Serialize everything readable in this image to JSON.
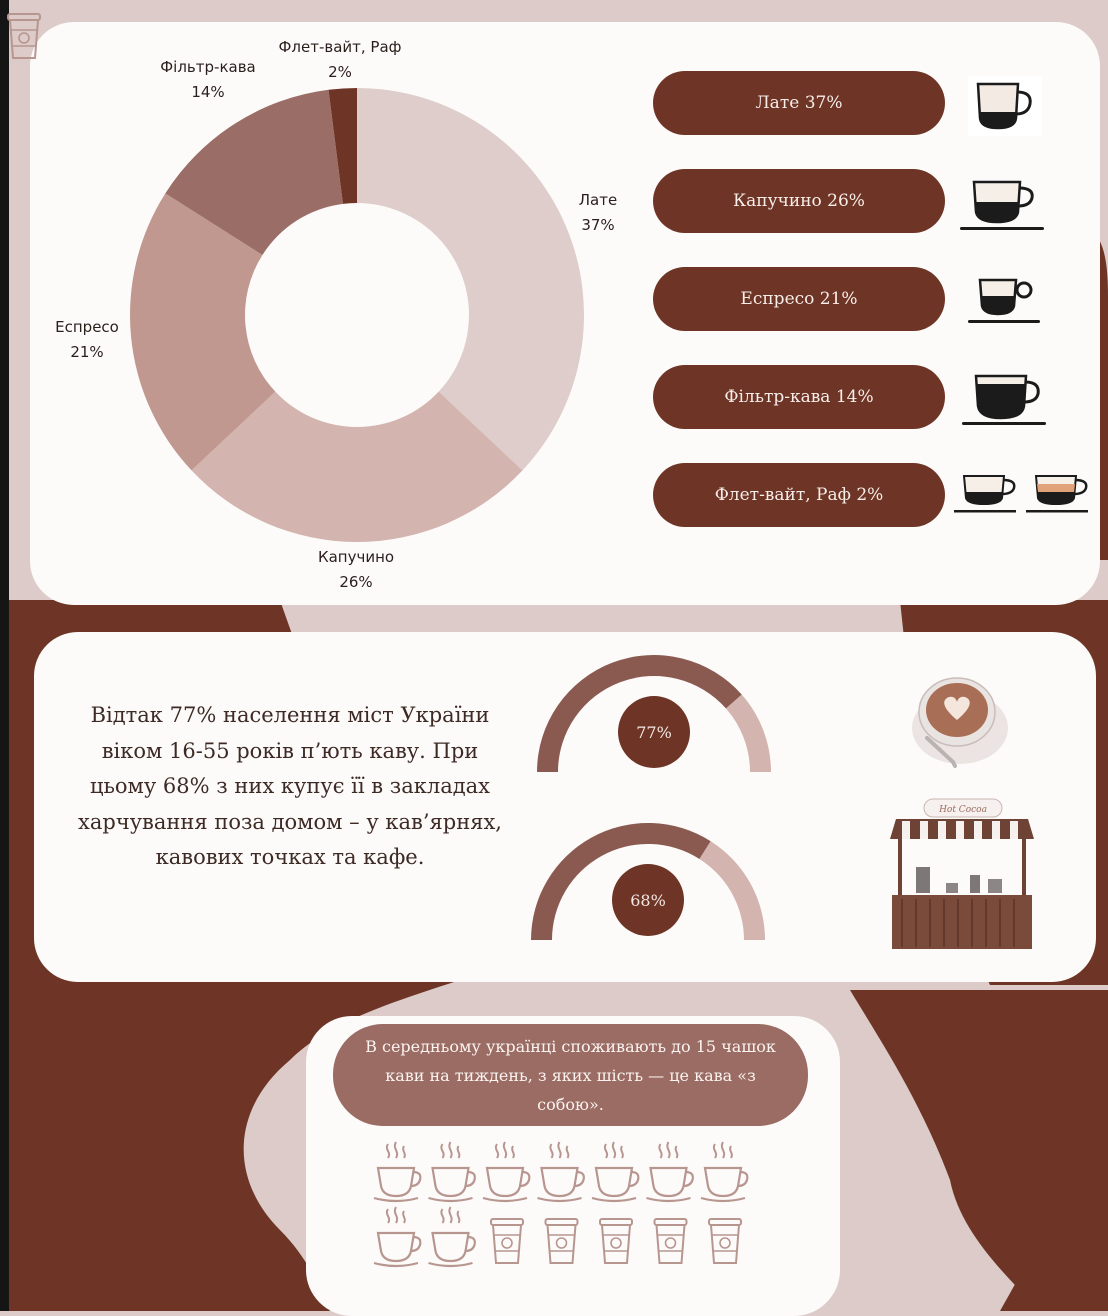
{
  "chart_data": [
    {
      "type": "pie",
      "title": "",
      "categories": [
        "Лате",
        "Капучино",
        "Еспресо",
        "Фільтр-кава",
        "Флет-вайт, Раф"
      ],
      "values": [
        37,
        26,
        21,
        14,
        2
      ],
      "value_labels": [
        "37%",
        "26%",
        "21%",
        "14%",
        "2%"
      ],
      "colors": [
        "#decdca",
        "#d3b4ae",
        "#c09890",
        "#9a6d66",
        "#6e3526"
      ],
      "donut": true
    },
    {
      "type": "bar",
      "title": "",
      "categories": [
        "Лате",
        "Капучино",
        "Еспресо",
        "Фільтр-кава",
        "Флет-вайт, Раф"
      ],
      "values": [
        37,
        26,
        21,
        14,
        2
      ],
      "value_labels": [
        "37%",
        "26%",
        "21%",
        "14%",
        "2%"
      ]
    },
    {
      "type": "gauge",
      "value": 77,
      "label": "77%",
      "range": [
        0,
        100
      ]
    },
    {
      "type": "gauge",
      "value": 68,
      "label": "68%",
      "range": [
        0,
        100
      ]
    },
    {
      "type": "pictogram",
      "total": 15,
      "categories": [
        "cup",
        "takeaway"
      ],
      "values": [
        9,
        6
      ]
    }
  ],
  "donut": {
    "labels": [
      {
        "name": "Лате",
        "value": "37%"
      },
      {
        "name": "Капучино",
        "value": "26%"
      },
      {
        "name": "Еспресо",
        "value": "21%"
      },
      {
        "name": "Фільтр-кава",
        "value": "14%"
      },
      {
        "name": "Флет-вайт, Раф",
        "value": "2%"
      }
    ]
  },
  "pills": [
    {
      "label": "Лате 37%",
      "icon": "latte-cup-icon"
    },
    {
      "label": "Капучино 26%",
      "icon": "cappuccino-cup-icon"
    },
    {
      "label": "Еспресо 21%",
      "icon": "espresso-cup-icon"
    },
    {
      "label": "Фільтр-кава 14%",
      "icon": "filter-coffee-cup-icon"
    },
    {
      "label": "Флет-вайт, Раф 2%",
      "icon": "flat-white-raf-cups-icon"
    }
  ],
  "paragraph": "Відтак 77% населення міст України віком 16-55 років п’ють каву. При цьому 68% з них купує її в закладах харчування поза домом – у кав’ярнях, кавових точках та кафе.",
  "stall_sign": "Hot Cocoa",
  "bubble_text": "В середньому українці споживають до 15 чашок кави на тиждень, з яких шість — це кава «з собою».",
  "colors": {
    "dark_brown": "#6e3526",
    "card": "#fdfbfa",
    "background": "#dccbc8",
    "mauve": "#9a6c64"
  }
}
